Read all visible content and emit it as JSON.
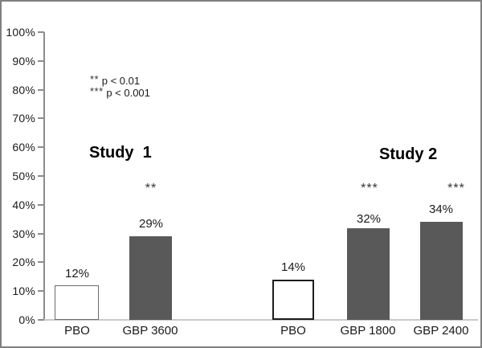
{
  "chart_data": {
    "type": "bar",
    "title": "",
    "xlabel": "",
    "ylabel": "",
    "ylim": [
      0,
      100
    ],
    "grid": false,
    "legend_position": "upper-left",
    "y_tick_labels": [
      "100%",
      "90%",
      "80%",
      "70%",
      "60%",
      "50%",
      "40%",
      "30%",
      "20%",
      "10%",
      "0%"
    ],
    "categories": [
      "PBO",
      "GBP 3600",
      "PBO",
      "GBP 1800",
      "GBP 2400"
    ],
    "values": [
      12,
      29,
      14,
      32,
      34
    ],
    "value_labels": [
      "12%",
      "29%",
      "14%",
      "32%",
      "34%"
    ],
    "significance": [
      "",
      "**",
      "",
      "***",
      "***"
    ],
    "groups": [
      {
        "title": "Study  1",
        "categories": [
          "PBO",
          "GBP 3600"
        ],
        "values": [
          12,
          29
        ]
      },
      {
        "title": "Study 2",
        "categories": [
          "PBO",
          "GBP 1800",
          "GBP 2400"
        ],
        "values": [
          14,
          32,
          34
        ]
      }
    ],
    "legend": [
      {
        "symbol": "**",
        "text": "p < 0.01"
      },
      {
        "symbol": "***",
        "text": "p < 0.001"
      }
    ],
    "colors": {
      "treatment_bar_fill": "#595959",
      "placebo_bar_fill": "#ffffff",
      "placebo_study1_border": "#6b6b6b",
      "placebo_study2_border": "#1c1c1c",
      "axis_line": "#8c8c8c",
      "baseline": "#c9c9c9",
      "frame_border": "#808080"
    }
  }
}
